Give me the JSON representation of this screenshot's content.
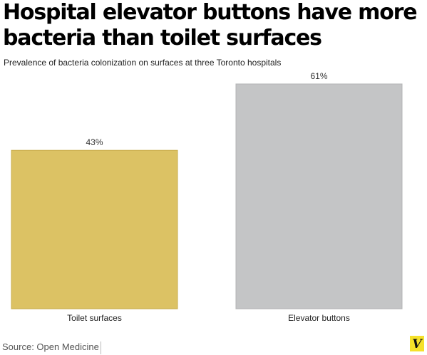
{
  "title": "Hospital elevator buttons have more bacteria than toilet surfaces",
  "subtitle": "Prevalence of bacteria colonization on surfaces at three Toronto hospitals",
  "source": "Source: Open Medicine",
  "logo": "V",
  "colors": {
    "toilet": "#dcc264",
    "elevator": "#c4c5c6"
  },
  "chart_data": {
    "type": "bar",
    "categories": [
      "Toilet surfaces",
      "Elevator buttons"
    ],
    "values": [
      43,
      61
    ],
    "data_labels": [
      "43%",
      "61%"
    ],
    "title": "Hospital elevator buttons have more bacteria than toilet surfaces",
    "subtitle": "Prevalence of bacteria colonization on surfaces at three Toronto hospitals",
    "xlabel": "",
    "ylabel": "",
    "ylim": [
      0,
      61
    ],
    "grid": false,
    "legend": "none"
  }
}
